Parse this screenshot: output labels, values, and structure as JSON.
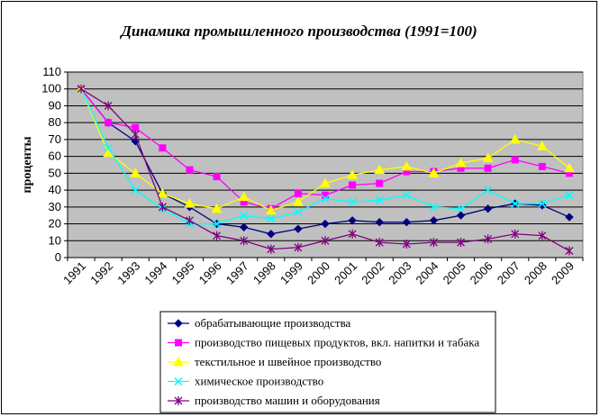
{
  "chart_data": {
    "type": "line",
    "title": "Динамика промышленного производства (1991=100)",
    "ylabel": "проценты",
    "xlabel": "",
    "ylim": [
      0,
      110
    ],
    "yticks": [
      0,
      10,
      20,
      30,
      40,
      50,
      60,
      70,
      80,
      90,
      100,
      110
    ],
    "grid": true,
    "legend_position": "bottom",
    "background_color": "#c0c0c0",
    "categories": [
      "1991",
      "1992",
      "1993",
      "1994",
      "1995",
      "1996",
      "1997",
      "1998",
      "1999",
      "2000",
      "2001",
      "2002",
      "2003",
      "2004",
      "2005",
      "2006",
      "2007",
      "2008",
      "2009"
    ],
    "series": [
      {
        "name": "обрабатывающие производства",
        "color": "#000080",
        "marker": "diamond",
        "values": [
          100,
          80,
          69,
          38,
          30,
          20,
          18,
          14,
          17,
          20,
          22,
          21,
          21,
          22,
          25,
          29,
          32,
          31,
          24
        ]
      },
      {
        "name": "производство пищевых продуктов, вкл. напитки и табака",
        "color": "#ff00ff",
        "marker": "square",
        "values": [
          100,
          80,
          77,
          65,
          52,
          48,
          33,
          29,
          38,
          37,
          43,
          44,
          51,
          51,
          53,
          53,
          58,
          54,
          50
        ]
      },
      {
        "name": "текстильное и швейное производство",
        "color": "#ffff00",
        "marker": "triangle",
        "values": [
          100,
          62,
          50,
          38,
          32,
          29,
          36,
          28,
          33,
          44,
          49,
          52,
          54,
          50,
          56,
          59,
          70,
          66,
          53
        ]
      },
      {
        "name": "химическое производство",
        "color": "#00ffff",
        "marker": "x",
        "values": [
          100,
          65,
          40,
          29,
          20,
          20,
          25,
          23,
          27,
          35,
          33,
          34,
          37,
          30,
          29,
          40,
          32,
          32,
          37
        ]
      },
      {
        "name": "производство машин и оборудования",
        "color": "#800080",
        "marker": "star",
        "values": [
          100,
          90,
          73,
          30,
          22,
          13,
          10,
          5,
          6,
          10,
          14,
          9,
          8,
          9,
          9,
          11,
          14,
          13,
          4
        ]
      }
    ]
  }
}
